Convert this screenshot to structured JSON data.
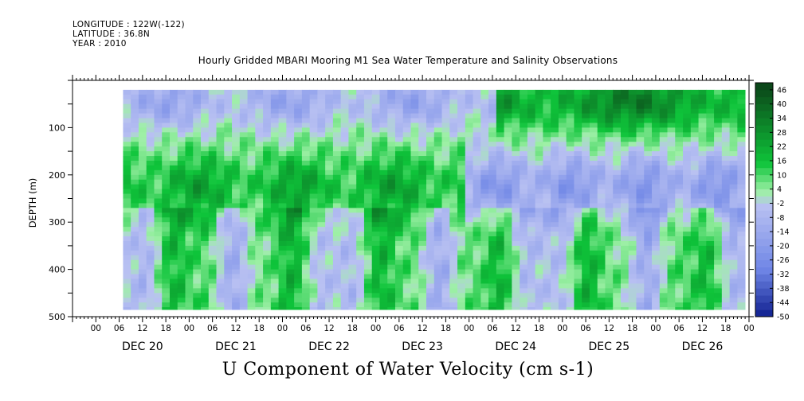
{
  "header": {
    "longitude": "LONGITUDE : 122W(-122)",
    "latitude": "LATITUDE : 36.8N",
    "year": "YEAR : 2010",
    "title": "Hourly Gridded MBARI Mooring M1 Sea Water Temperature and Salinity Observations"
  },
  "chart_data": {
    "type": "heatmap",
    "title": "Hourly Gridded MBARI Mooring M1 Sea Water Temperature and Salinity Observations",
    "xlabel": "U Component of Water Velocity (cm s-1)",
    "ylabel": "DEPTH (m)",
    "ylim": [
      500,
      0
    ],
    "y_ticks": [
      100,
      200,
      300,
      400,
      500
    ],
    "y_tick_labels": [
      "100",
      "200",
      "300",
      "400",
      "500"
    ],
    "data_depth_range": [
      20,
      485
    ],
    "x_days": [
      "DEC 20",
      "DEC 21",
      "DEC 22",
      "DEC 23",
      "DEC 24",
      "DEC 25",
      "DEC 26"
    ],
    "x_hour_labels": [
      "00",
      "06",
      "12",
      "18"
    ],
    "x_start": "DEC 19 18:00",
    "x_end": "DEC 27 00:00",
    "data_start": "DEC 20 07:00",
    "data_end": "DEC 26 23:00",
    "colorbar": {
      "labels": [
        46,
        40,
        34,
        28,
        22,
        16,
        10,
        4,
        -2,
        -8,
        -14,
        -20,
        -26,
        -32,
        -38,
        -44,
        -50
      ],
      "min": -50,
      "max": 49,
      "colors": {
        "dark_green": "#0b3d16",
        "green": "#0ec43a",
        "light_green": "#9ef0a6",
        "light_blue": "#b9c1f2",
        "blue": "#6f86e6",
        "dark_blue": "#0f1f8f"
      }
    },
    "field_description": [
      {
        "depth_range": "20-130",
        "days": "DEC 20-21",
        "value": -12
      },
      {
        "depth_range": "20-130",
        "days": "DEC 24-26",
        "value": 24
      },
      {
        "depth_range": "150-300",
        "days": "DEC 21-22",
        "value": 16
      },
      {
        "depth_range": "180-300",
        "days": "DEC 24-25",
        "value": -20
      },
      {
        "depth_range": "300-485",
        "days": "DEC 20-26",
        "value": 2
      }
    ]
  }
}
